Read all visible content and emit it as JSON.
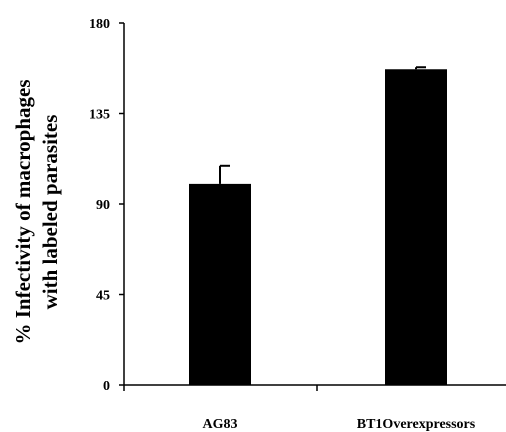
{
  "chart_data": {
    "type": "bar",
    "title": "",
    "xlabel": "",
    "ylabel": [
      "% Infectivity of macrophages",
      "with labeled parasites"
    ],
    "categories": [
      "AG83",
      "BT1Overexpressors"
    ],
    "series": [
      {
        "values": [
          100,
          157
        ],
        "errors": [
          9,
          1
        ],
        "color": "#000000"
      }
    ],
    "ylim": [
      0,
      180
    ],
    "yticks": [
      0,
      45,
      90,
      135,
      180
    ],
    "grid": false,
    "legend": "none"
  }
}
